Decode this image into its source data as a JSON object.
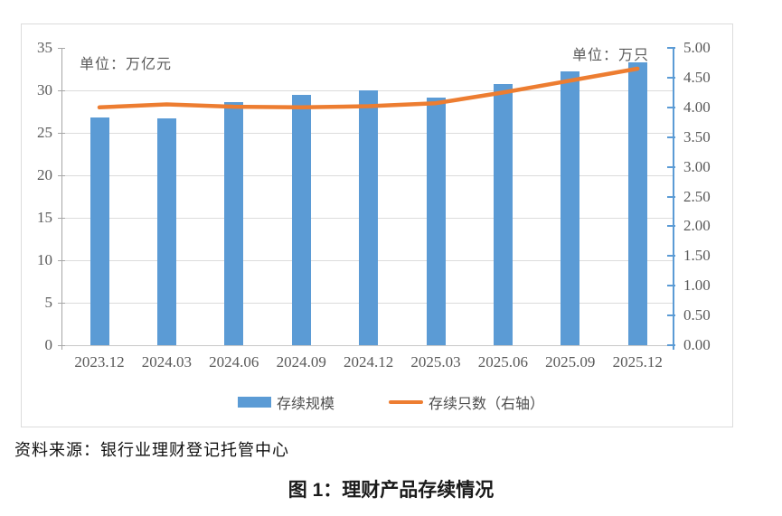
{
  "page": {
    "source_note": "资料来源：银行业理财登记托管中心",
    "caption": "图 1：理财产品存续情况"
  },
  "chart_data": {
    "type": "bar",
    "title": "",
    "categories": [
      "2023.12",
      "2024.03",
      "2024.06",
      "2024.09",
      "2024.12",
      "2025.03",
      "2025.06",
      "2025.09",
      "2025.12"
    ],
    "series": [
      {
        "name": "存续规模",
        "type": "bar",
        "axis": "left",
        "color": "#5B9BD5",
        "values": [
          26.8,
          26.7,
          28.6,
          29.5,
          30.0,
          29.1,
          30.7,
          32.2,
          33.3
        ]
      },
      {
        "name": "存续只数（右轴）",
        "type": "line",
        "axis": "right",
        "color": "#ED7D31",
        "values": [
          4.0,
          4.05,
          4.01,
          4.0,
          4.02,
          4.07,
          4.25,
          4.45,
          4.65
        ]
      }
    ],
    "left_axis": {
      "unit_label": "单位：万亿元",
      "min": 0,
      "max": 35,
      "step": 5,
      "tick_labels": [
        "35",
        "30",
        "25",
        "20",
        "15",
        "10",
        "5",
        "0"
      ]
    },
    "right_axis": {
      "unit_label": "单位：万只",
      "min": 0,
      "max": 5,
      "step": 0.5,
      "tick_labels": [
        "5.00",
        "4.50",
        "4.00",
        "3.50",
        "3.00",
        "2.50",
        "2.00",
        "1.50",
        "1.00",
        "0.50",
        "0.00"
      ]
    },
    "grid": true,
    "legend_position": "bottom"
  }
}
